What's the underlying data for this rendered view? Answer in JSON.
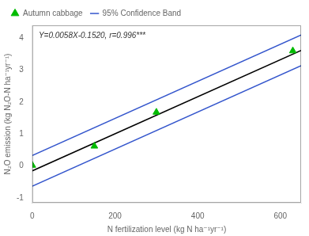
{
  "chart_data": {
    "type": "scatter",
    "xlabel": "N fertilization level (kg N ha⁻¹yr⁻¹)",
    "ylabel": "N₂O emission (kg N₂O-N ha⁻¹yr⁻¹)",
    "annotation": "Y=0.0058X-0.1520, r=0.996***",
    "series": [
      {
        "name": "Autumn cabbage",
        "type": "scatter",
        "marker": "triangle",
        "color": "#00bb00",
        "x": [
          0,
          150,
          300,
          630
        ],
        "values": [
          0.02,
          0.62,
          1.68,
          3.6
        ]
      },
      {
        "name": "95% Confidence Band",
        "type": "line",
        "line_style": "solid",
        "color": "#3355cc",
        "x": [
          0,
          650
        ],
        "values": [
          0.328,
          4.098
        ]
      },
      {
        "type": "line",
        "line_style": "solid",
        "color": "#3355cc",
        "x": [
          0,
          650
        ],
        "values": [
          -0.632,
          3.138
        ]
      },
      {
        "type": "line",
        "line_style": "solid",
        "color": "#000000",
        "x": [
          0,
          650
        ],
        "values": [
          -0.152,
          3.618
        ]
      }
    ],
    "xlim": [
      0,
      650
    ],
    "ylim": [
      -1.15,
      4.4
    ],
    "xticks": [
      0,
      200,
      400,
      600
    ],
    "yticks": [
      -1,
      0,
      1,
      2,
      3,
      4
    ],
    "grid": false,
    "legend": "upper left"
  }
}
